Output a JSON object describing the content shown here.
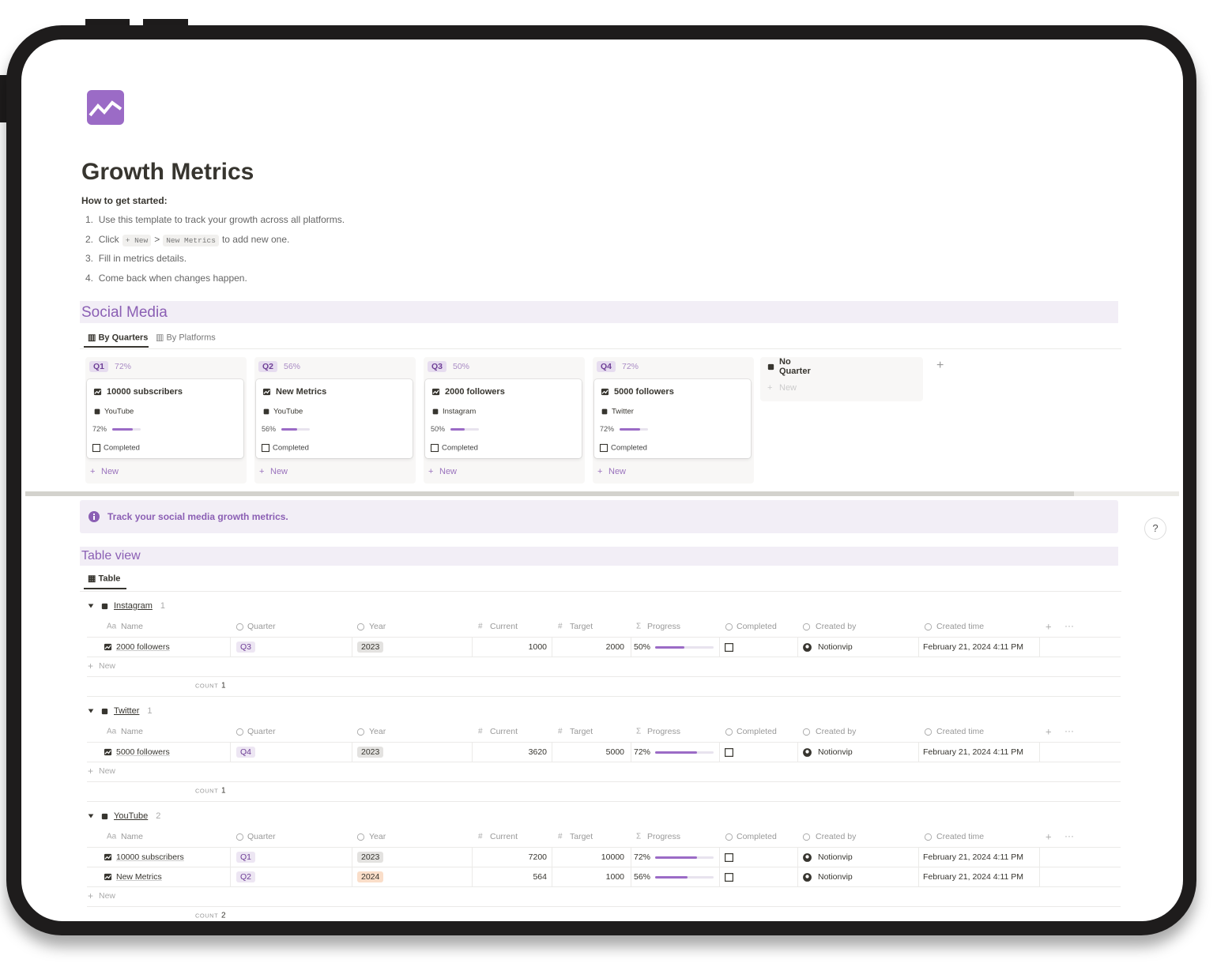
{
  "page": {
    "title": "Growth Metrics",
    "help": "?"
  },
  "intro": {
    "heading": "How to get started:",
    "steps": [
      {
        "number": "1.",
        "text": "Use this template to track your growth across all platforms."
      },
      {
        "number": "2.",
        "text": "Click",
        "code1": "+ New",
        "separator": ">",
        "code2": "New Metrics",
        "rest": "to add new one."
      },
      {
        "number": "3.",
        "text": "Fill in metrics details."
      },
      {
        "number": "4.",
        "text": "Come back when changes happen."
      }
    ]
  },
  "social": {
    "heading": "Social Media",
    "tabs": [
      "By Quarters",
      "By Platforms"
    ],
    "columns": [
      {
        "quarter": "Q1",
        "percent": "72%",
        "new": "New",
        "cards": [
          {
            "name": "10000 subscribers",
            "platform": "YouTube",
            "progress": "72%",
            "completed": "Completed"
          }
        ]
      },
      {
        "quarter": "Q2",
        "percent": "56%",
        "new": "New",
        "cards": [
          {
            "name": "New Metrics",
            "platform": "YouTube",
            "progress": "56%",
            "completed": "Completed"
          }
        ]
      },
      {
        "quarter": "Q3",
        "percent": "50%",
        "new": "New",
        "cards": [
          {
            "name": "2000 followers",
            "platform": "Instagram",
            "progress": "50%",
            "completed": "Completed"
          }
        ]
      },
      {
        "quarter": "Q4",
        "percent": "72%",
        "new": "New",
        "cards": [
          {
            "name": "5000 followers",
            "platform": "Twitter",
            "progress": "72%",
            "completed": "Completed"
          }
        ]
      }
    ],
    "no_quarter": {
      "label": "No Quarter",
      "new": "New"
    }
  },
  "callout": "Track your social media growth metrics.",
  "table_view": {
    "heading": "Table view",
    "tab": "Table",
    "columns": [
      {
        "label": "Name",
        "icon": "Aa"
      },
      {
        "label": "Quarter"
      },
      {
        "label": "Year"
      },
      {
        "label": "Current",
        "icon": "#"
      },
      {
        "label": "Target",
        "icon": "#"
      },
      {
        "label": "Progress",
        "icon": "Σ"
      },
      {
        "label": "Completed"
      },
      {
        "label": "Created by"
      },
      {
        "label": "Created time"
      }
    ],
    "groups": [
      {
        "name": "Instagram",
        "count": 1,
        "new": "New",
        "count_label": "COUNT",
        "count_value": 1,
        "rows": [
          {
            "name": "2000 followers",
            "quarter": "Q3",
            "year": 2023,
            "year_color": "#e3e2e0",
            "current": 1000,
            "target": 2000,
            "progress": "50%",
            "created_by": "Notionvip",
            "created_time": "February 21, 2024 4:11 PM"
          }
        ]
      },
      {
        "name": "Twitter",
        "count": 1,
        "new": "New",
        "count_label": "COUNT",
        "count_value": 1,
        "rows": [
          {
            "name": "5000 followers",
            "quarter": "Q4",
            "year": 2023,
            "year_color": "#e3e2e0",
            "current": 3620,
            "target": 5000,
            "progress": "72%",
            "created_by": "Notionvip",
            "created_time": "February 21, 2024 4:11 PM"
          }
        ]
      },
      {
        "name": "YouTube",
        "count": 2,
        "new": "New",
        "count_label": "COUNT",
        "count_value": 2,
        "rows": [
          {
            "name": "10000 subscribers",
            "quarter": "Q1",
            "year": 2023,
            "year_color": "#e3e2e0",
            "current": 7200,
            "target": 10000,
            "progress": "72%",
            "created_by": "Notionvip",
            "created_time": "February 21, 2024 4:11 PM"
          },
          {
            "name": "New Metrics",
            "quarter": "Q2",
            "year": 2024,
            "year_color": "#fadec9",
            "current": 564,
            "target": 1000,
            "progress": "56%",
            "created_by": "Notionvip",
            "created_time": "February 21, 2024 4:11 PM"
          }
        ]
      }
    ]
  }
}
